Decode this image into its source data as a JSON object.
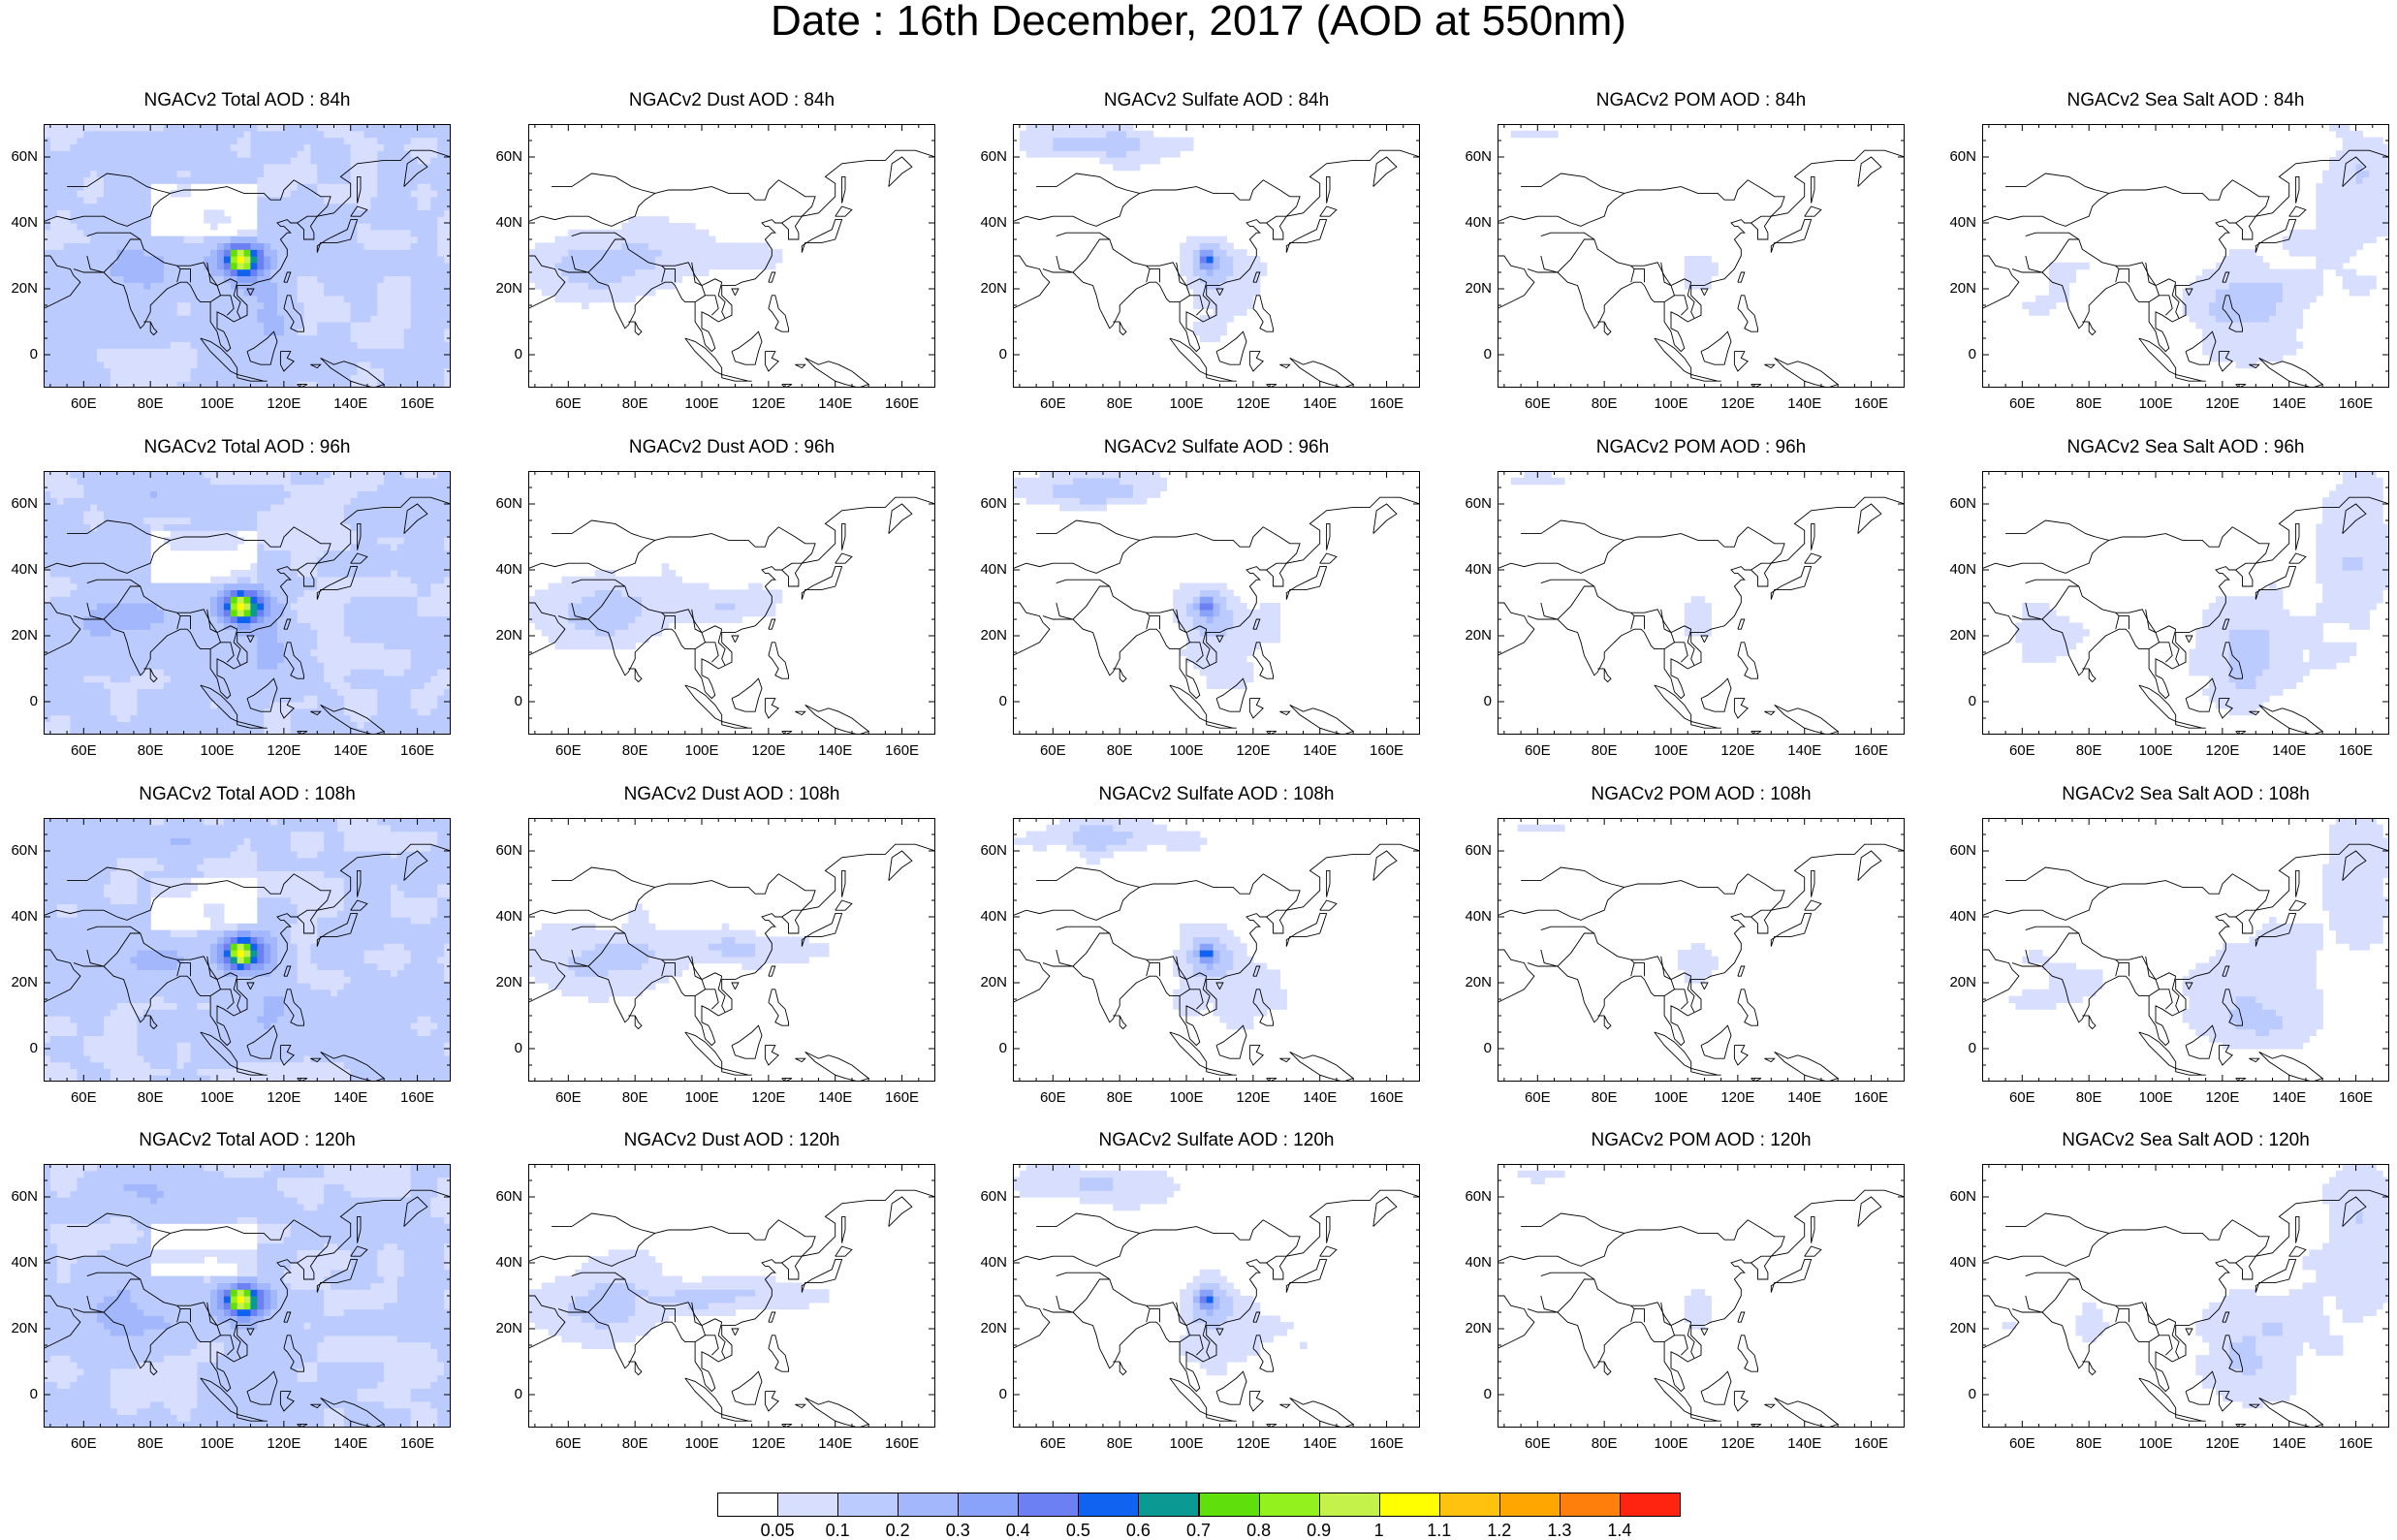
{
  "title": "Date : 16th December, 2017 (AOD at 550nm)",
  "panels": [
    [
      "NGACv2 Total AOD : 84h",
      "NGACv2 Dust AOD : 84h",
      "NGACv2 Sulfate AOD : 84h",
      "NGACv2 POM AOD : 84h",
      "NGACv2 Sea Salt AOD : 84h"
    ],
    [
      "NGACv2 Total AOD : 96h",
      "NGACv2 Dust AOD : 96h",
      "NGACv2 Sulfate AOD : 96h",
      "NGACv2 POM AOD : 96h",
      "NGACv2 Sea Salt AOD : 96h"
    ],
    [
      "NGACv2 Total AOD : 108h",
      "NGACv2 Dust AOD : 108h",
      "NGACv2 Sulfate AOD : 108h",
      "NGACv2 POM AOD : 108h",
      "NGACv2 Sea Salt AOD : 108h"
    ],
    [
      "NGACv2 Total AOD : 120h",
      "NGACv2 Dust AOD : 120h",
      "NGACv2 Sulfate AOD : 120h",
      "NGACv2 POM AOD : 120h",
      "NGACv2 Sea Salt  AOD : 120h"
    ]
  ],
  "map_extent": {
    "lon": [
      48,
      170
    ],
    "lat": [
      -10,
      70
    ]
  },
  "x_ticks": [
    "60E",
    "80E",
    "100E",
    "120E",
    "140E",
    "160E"
  ],
  "x_tick_values": [
    60,
    80,
    100,
    120,
    140,
    160
  ],
  "y_ticks": [
    "60N",
    "40N",
    "20N",
    "0"
  ],
  "y_tick_values": [
    60,
    40,
    20,
    0
  ],
  "colorbar": {
    "labels": [
      "0.05",
      "0.1",
      "0.2",
      "0.3",
      "0.4",
      "0.5",
      "0.6",
      "0.7",
      "0.8",
      "0.9",
      "1",
      "1.1",
      "1.2",
      "1.3",
      "1.4"
    ],
    "colors": [
      "#ffffff",
      "#d7defe",
      "#bccbfd",
      "#a2b7fc",
      "#8aa3fa",
      "#6c7ff3",
      "#0f63f0",
      "#0a9a93",
      "#5fe00d",
      "#93f11d",
      "#c4f24a",
      "#ffff00",
      "#ffc30f",
      "#ffa600",
      "#ff7f0c",
      "#ff2410"
    ]
  }
}
